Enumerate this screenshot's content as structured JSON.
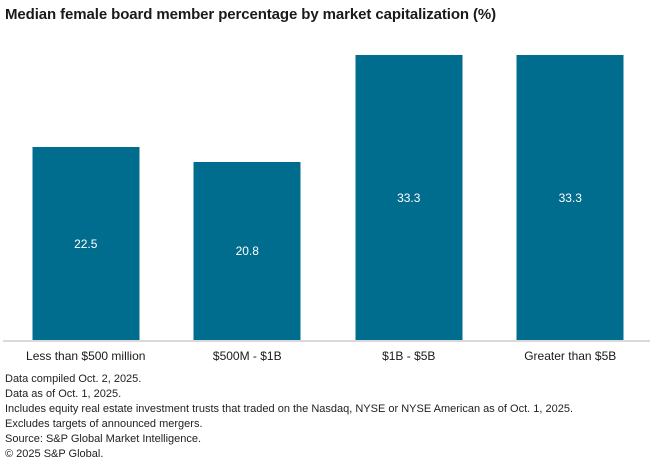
{
  "page": {
    "background": "#ffffff"
  },
  "chart_data": {
    "type": "bar",
    "title": "Median female board member percentage by market capitalization (%)",
    "categories": [
      "Less than $500 million",
      "$500M - $1B",
      "$1B - $5B",
      "Greater than $5B"
    ],
    "values": [
      22.5,
      20.8,
      33.3,
      33.3
    ],
    "value_labels": [
      "22.5",
      "20.8",
      "33.3",
      "33.3"
    ],
    "xlabel": "",
    "ylabel": "",
    "ylim": [
      0,
      34.1
    ],
    "grid": false,
    "legend": false,
    "bar_color": "#006d8e",
    "value_label_color": "#ffffff",
    "axis_line_color": "#d9d9d9",
    "title_color": "#1a1a1a",
    "category_label_color": "#1a1a1a"
  },
  "footnotes": [
    "Data compiled Oct. 2, 2025.",
    "Data as of Oct. 1, 2025.",
    "Includes equity real estate investment trusts that traded on the Nasdaq, NYSE or NYSE American as of Oct. 1, 2025.",
    "Excludes targets of announced mergers.",
    "Source: S&P Global Market Intelligence.",
    "© 2025 S&P Global."
  ]
}
